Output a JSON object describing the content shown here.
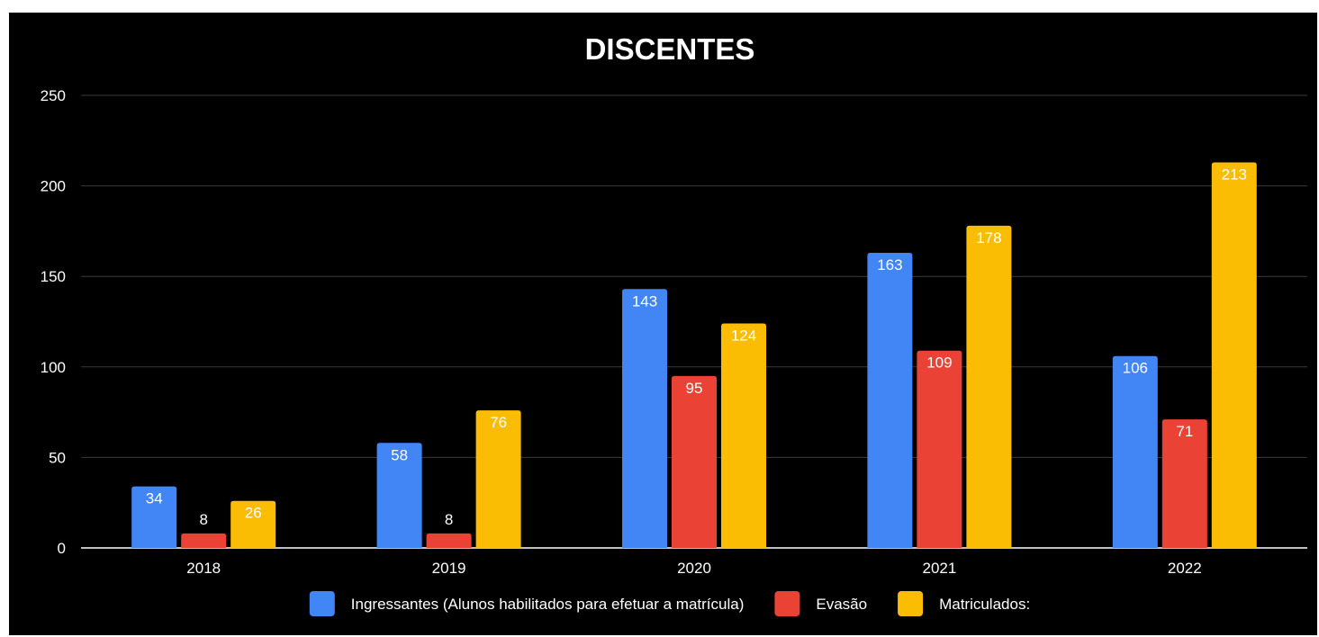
{
  "chart_data": {
    "type": "bar",
    "title": "DISCENTES",
    "categories": [
      "2018",
      "2019",
      "2020",
      "2021",
      "2022"
    ],
    "series": [
      {
        "name": "Ingressantes (Alunos habilitados para efetuar a matrícula)",
        "color": "#4285f4",
        "label_color": "#ffffff",
        "values": [
          34,
          58,
          143,
          163,
          106
        ]
      },
      {
        "name": "Evasão",
        "color": "#ea4335",
        "label_color": "#ffffff",
        "values": [
          8,
          8,
          95,
          109,
          71
        ]
      },
      {
        "name": "Matriculados:",
        "color": "#fbbc04",
        "label_color": "#ffffff",
        "values": [
          26,
          76,
          124,
          178,
          213
        ]
      }
    ],
    "ylim": [
      0,
      250
    ],
    "yticks": [
      0,
      50,
      100,
      150,
      200,
      250
    ],
    "grid": true,
    "legend": "bottom",
    "background": "#000000"
  }
}
